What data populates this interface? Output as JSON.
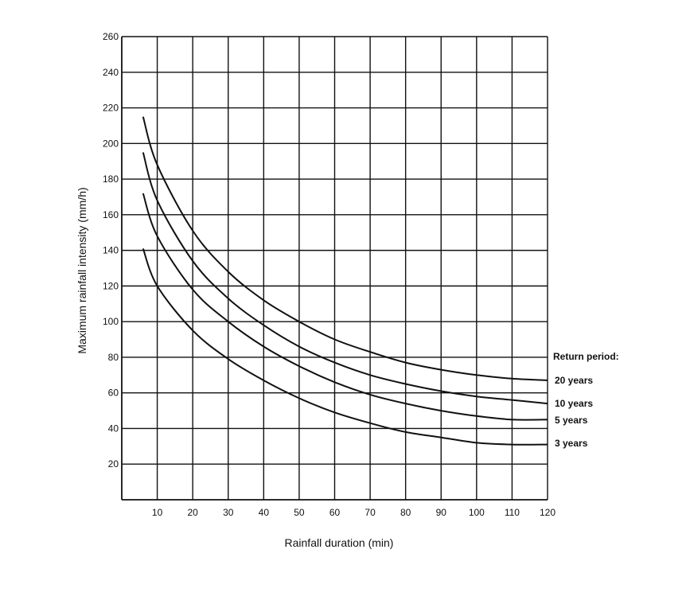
{
  "chart_data": {
    "type": "line",
    "title": "",
    "xlabel": "Rainfall duration (min)",
    "ylabel": "Maximum rainfall intensity (mm/h)",
    "xlim": [
      0,
      120
    ],
    "ylim": [
      0,
      260
    ],
    "xticks": [
      10,
      20,
      30,
      40,
      50,
      60,
      70,
      80,
      90,
      100,
      110,
      120
    ],
    "yticks": [
      20,
      40,
      60,
      80,
      100,
      120,
      140,
      160,
      180,
      200,
      220,
      240,
      260
    ],
    "xtick_labels": [
      "10",
      "20",
      "30",
      "40",
      "50",
      "60",
      "70",
      "80",
      "90",
      "100",
      "110",
      "120"
    ],
    "ytick_labels": [
      "20",
      "40",
      "60",
      "80",
      "100",
      "120",
      "140",
      "160",
      "180",
      "200",
      "220",
      "240",
      "260"
    ],
    "grid": true,
    "legend": {
      "title": "Return period:",
      "placement": "right"
    },
    "series": [
      {
        "name": "20 years",
        "x": [
          6,
          10,
          20,
          30,
          40,
          50,
          60,
          70,
          80,
          90,
          100,
          110,
          120
        ],
        "y": [
          215,
          188,
          151,
          128,
          112,
          100,
          90,
          83,
          77,
          73,
          70,
          68,
          67
        ]
      },
      {
        "name": "10 years",
        "x": [
          6,
          10,
          20,
          30,
          40,
          50,
          60,
          70,
          80,
          90,
          100,
          110,
          120
        ],
        "y": [
          195,
          168,
          134,
          113,
          98,
          86,
          77,
          70,
          65,
          61,
          58,
          56,
          54
        ]
      },
      {
        "name": "5 years",
        "x": [
          6,
          10,
          20,
          30,
          40,
          50,
          60,
          70,
          80,
          90,
          100,
          110,
          120
        ],
        "y": [
          172,
          148,
          118,
          100,
          86,
          75,
          66,
          59,
          54,
          50,
          47,
          45,
          45
        ]
      },
      {
        "name": "3 years",
        "x": [
          6,
          10,
          20,
          30,
          40,
          50,
          60,
          70,
          80,
          90,
          100,
          110,
          120
        ],
        "y": [
          141,
          120,
          95,
          79,
          67,
          57,
          49,
          43,
          38,
          35,
          32,
          31,
          31
        ]
      }
    ]
  }
}
